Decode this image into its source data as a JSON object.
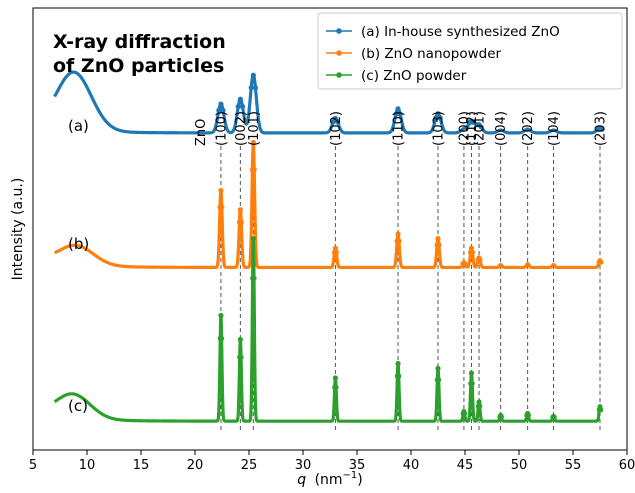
{
  "chart_data": {
    "type": "line",
    "title": "X-ray diffraction\nof ZnO particles",
    "xlabel_var": "q",
    "xlabel_unit": "(nm",
    "xlabel_sup": "−1",
    "xlabel_close": ")",
    "ylabel": "Intensity (a.u.)",
    "xlim": [
      5,
      60
    ],
    "xticks": [
      5,
      10,
      15,
      20,
      25,
      30,
      35,
      40,
      45,
      50,
      55,
      60
    ],
    "x_range": [
      7,
      57.5
    ],
    "y_ticks_shown": false,
    "legend_position": "top-right",
    "peak_group_label": "ZnO",
    "peaks": [
      {
        "q": 22.4,
        "label": "(100)"
      },
      {
        "q": 24.2,
        "label": "(002)"
      },
      {
        "q": 25.4,
        "label": "(101)"
      },
      {
        "q": 33.0,
        "label": "(102)"
      },
      {
        "q": 38.8,
        "label": "(110)"
      },
      {
        "q": 42.5,
        "label": "(103)"
      },
      {
        "q": 44.9,
        "label": "(200)"
      },
      {
        "q": 45.6,
        "label": "(112)"
      },
      {
        "q": 46.3,
        "label": "(201)"
      },
      {
        "q": 48.3,
        "label": "(004)"
      },
      {
        "q": 50.8,
        "label": "(202)"
      },
      {
        "q": 53.2,
        "label": "(104)"
      },
      {
        "q": 57.5,
        "label": "(203)"
      }
    ],
    "series": [
      {
        "name": "(a) In-house synthesized ZnO",
        "curve_label": "(a)",
        "color": "#1f77b4",
        "baseline": 3.0,
        "hump": {
          "q": 8.8,
          "height": 0.6,
          "width": 1.6
        },
        "peak_heights": [
          0.3,
          0.35,
          0.6,
          0.15,
          0.25,
          0.2,
          0.04,
          0.12,
          0.08,
          0.03,
          0.04,
          0.03,
          0.05
        ],
        "peak_width": 0.28
      },
      {
        "name": "(b) ZnO nanopowder",
        "curve_label": "(b)",
        "color": "#ff7f0e",
        "baseline": 1.6,
        "hump": {
          "q": 9.0,
          "height": 0.2,
          "width": 1.6
        },
        "peak_heights": [
          0.8,
          0.6,
          1.3,
          0.2,
          0.35,
          0.3,
          0.05,
          0.2,
          0.1,
          0.03,
          0.04,
          0.03,
          0.07
        ],
        "peak_width": 0.12
      },
      {
        "name": "(c) ZnO powder",
        "curve_label": "(c)",
        "color": "#2ca02c",
        "baseline": 0.0,
        "hump": {
          "q": 8.7,
          "height": 0.25,
          "width": 1.6
        },
        "peak_heights": [
          1.1,
          0.85,
          1.9,
          0.45,
          0.6,
          0.55,
          0.1,
          0.5,
          0.2,
          0.06,
          0.08,
          0.05,
          0.15
        ],
        "peak_width": 0.09
      }
    ]
  }
}
